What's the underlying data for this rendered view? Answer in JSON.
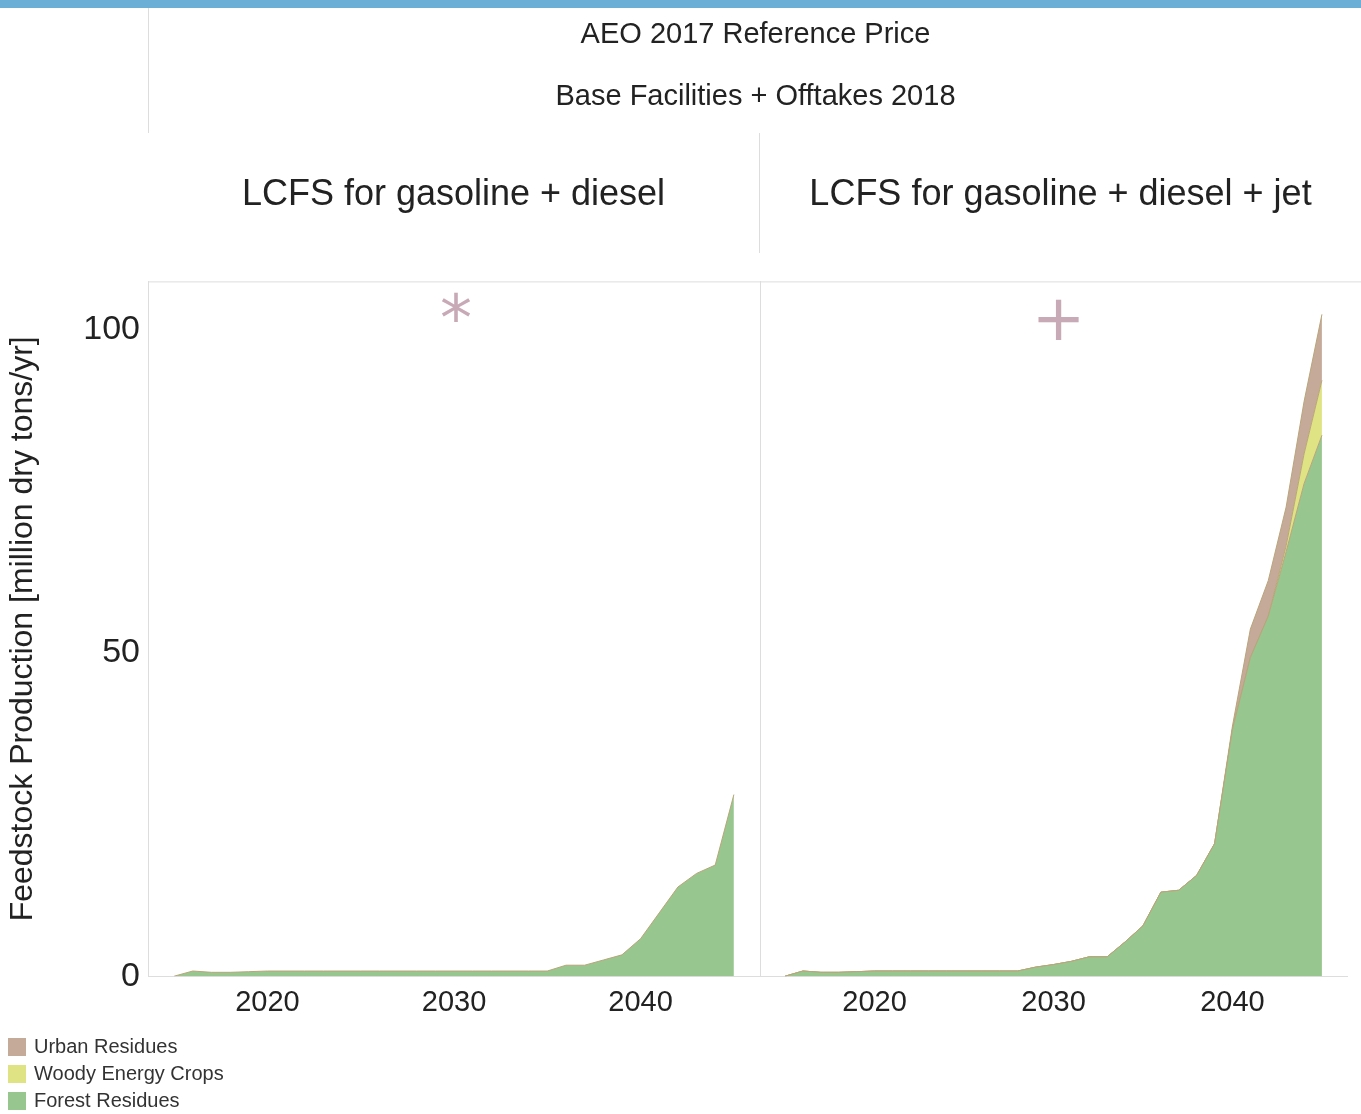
{
  "chart_data": [
    {
      "type": "area",
      "title": "LCFS for gasoline + diesel",
      "ylabel": "Feedstock Production [million dry tons/yr]",
      "annotations": [
        "AEO 2017 Reference Price",
        "Base Facilities + Offtakes 2018",
        "*"
      ],
      "x": [
        2015,
        2016,
        2017,
        2018,
        2019,
        2020,
        2021,
        2022,
        2023,
        2024,
        2025,
        2026,
        2027,
        2028,
        2029,
        2030,
        2031,
        2032,
        2033,
        2034,
        2035,
        2036,
        2037,
        2038,
        2039,
        2040,
        2041,
        2042,
        2043,
        2044,
        2045
      ],
      "xlim": [
        2013.6,
        2046.4
      ],
      "xticks": [
        2020,
        2030,
        2040
      ],
      "ylim": [
        0,
        107.5
      ],
      "yticks": [
        0,
        50,
        100
      ],
      "stacked": true,
      "grid": false,
      "series": [
        {
          "color": "#98c68f",
          "values": [
            0,
            0.8,
            0.6,
            0.6,
            0.7,
            0.8,
            0.8,
            0.8,
            0.8,
            0.8,
            0.8,
            0.8,
            0.8,
            0.8,
            0.8,
            0.8,
            0.8,
            0.8,
            0.8,
            0.8,
            0.8,
            1.7,
            1.7,
            2.5,
            3.3,
            5.8,
            9.8,
            13.8,
            15.9,
            17.2,
            28.1
          ]
        }
      ]
    },
    {
      "type": "area",
      "title": "LCFS for gasoline + diesel + jet",
      "annotations": [
        "+"
      ],
      "x": [
        2015,
        2016,
        2017,
        2018,
        2019,
        2020,
        2021,
        2022,
        2023,
        2024,
        2025,
        2026,
        2027,
        2028,
        2029,
        2030,
        2031,
        2032,
        2033,
        2034,
        2035,
        2036,
        2037,
        2038,
        2039,
        2040,
        2041,
        2042,
        2043,
        2044,
        2045
      ],
      "xlim": [
        2013.6,
        2046.4
      ],
      "xticks": [
        2020,
        2030,
        2040
      ],
      "ylim": [
        0,
        107.5
      ],
      "yticks": [
        0,
        50,
        100
      ],
      "tick_labels": "x",
      "stacked": true,
      "grid": false,
      "legend": "bottom left",
      "series": [
        {
          "name": "Forest Residues",
          "color": "#98c68f",
          "values": [
            0,
            0.8,
            0.6,
            0.6,
            0.7,
            0.8,
            0.8,
            0.8,
            0.8,
            0.8,
            0.8,
            0.8,
            0.8,
            0.8,
            1.4,
            1.8,
            2.3,
            3.0,
            3.0,
            5.3,
            7.8,
            13.0,
            13.3,
            15.6,
            20.5,
            38.2,
            49.3,
            55.7,
            65.7,
            76.2,
            83.7
          ]
        },
        {
          "name": "Woody Energy Crops",
          "color": "#dfe383",
          "values": [
            0,
            0,
            0,
            0,
            0,
            0,
            0,
            0,
            0,
            0,
            0,
            0,
            0,
            0,
            0,
            0,
            0,
            0,
            0,
            0,
            0,
            0,
            0,
            0,
            0,
            0,
            0,
            0,
            0.9,
            4.6,
            8.5
          ]
        },
        {
          "name": "Urban Residues",
          "color": "#c5aa9a",
          "values": [
            0,
            0,
            0,
            0,
            0,
            0,
            0,
            0,
            0,
            0,
            0,
            0,
            0,
            0,
            0,
            0,
            0,
            0,
            0,
            0,
            0,
            0,
            0,
            0,
            0,
            0.5,
            4.4,
            5.5,
            6.0,
            8.1,
            10.2
          ]
        }
      ]
    }
  ]
}
